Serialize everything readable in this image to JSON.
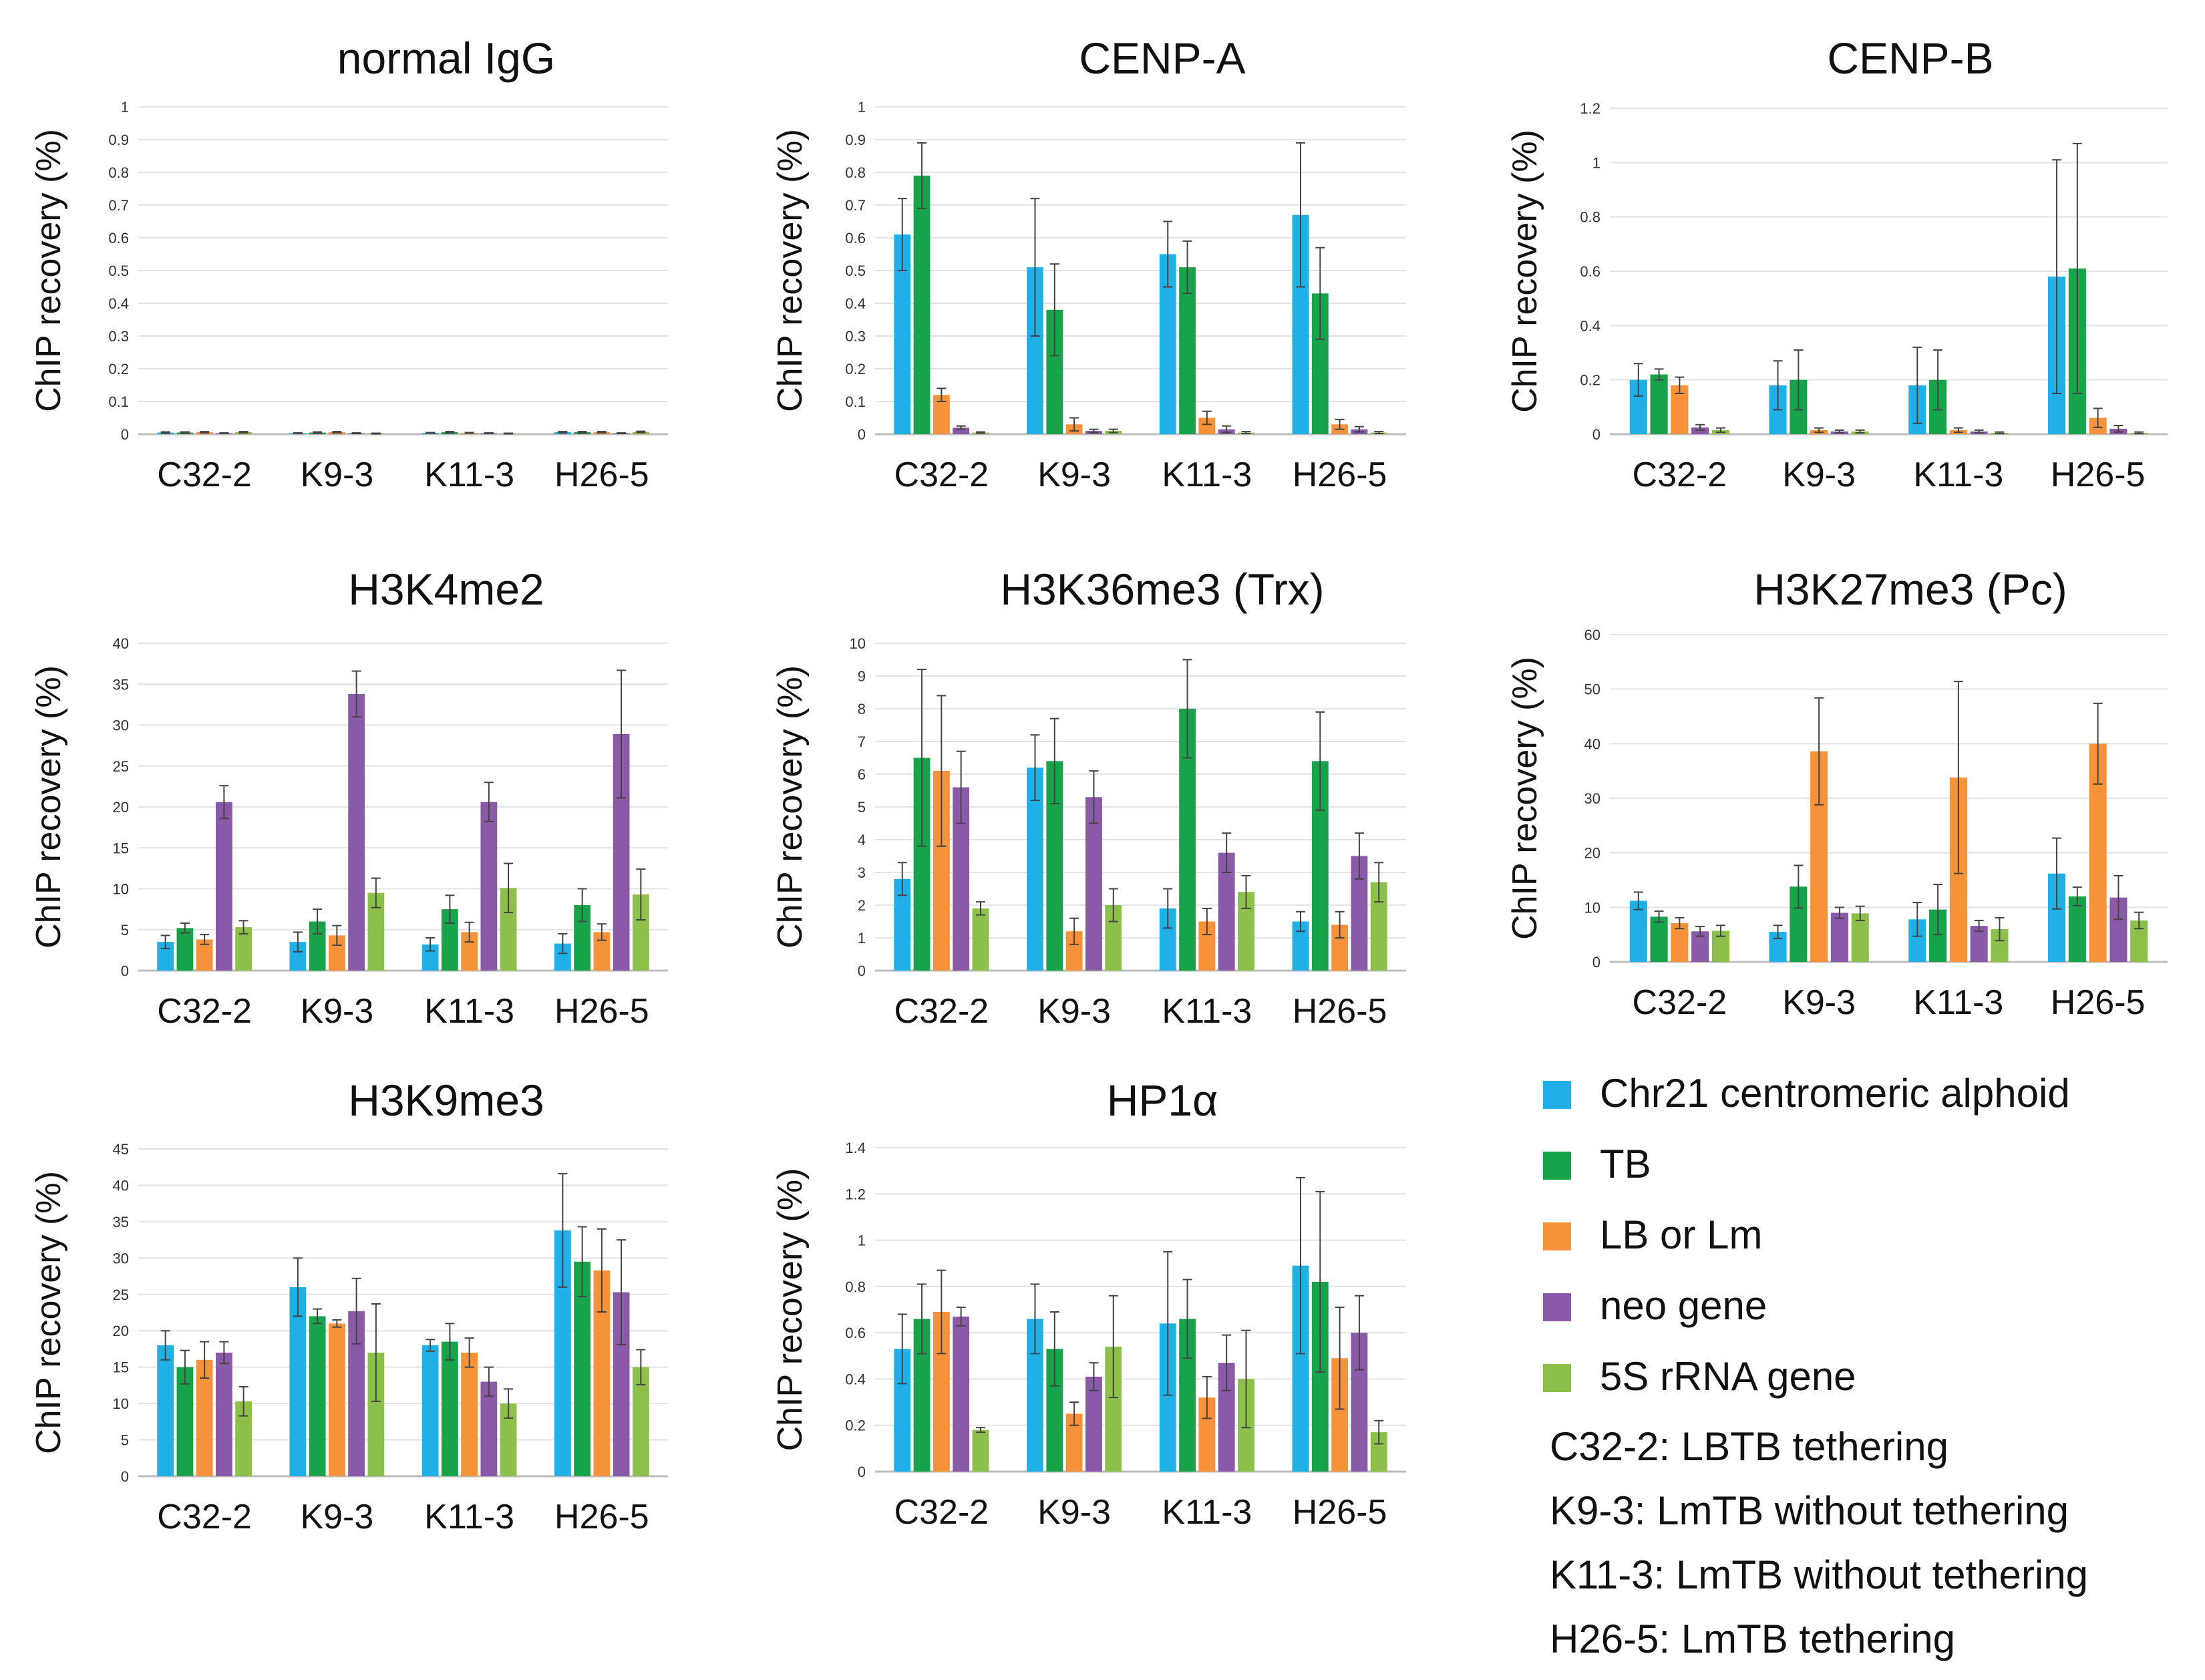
{
  "chart_data": [
    {
      "type": "bar",
      "title": "normal IgG",
      "ylabel": "ChIP recovery (%)",
      "xlabel": "",
      "ylim": [
        0,
        1
      ],
      "yticks": [
        "0",
        "0.1",
        "0.2",
        "0.3",
        "0.4",
        "0.5",
        "0.6",
        "0.7",
        "0.8",
        "0.9",
        "1"
      ],
      "categories": [
        "C32-2",
        "K9-3",
        "K11-3",
        "H26-5"
      ],
      "series": [
        {
          "name": "Chr21 centromeric alphoid",
          "values": [
            0.005,
            0.003,
            0.004,
            0.006
          ],
          "errors": [
            0.002,
            0.001,
            0.001,
            0.002
          ]
        },
        {
          "name": "TB",
          "values": [
            0.005,
            0.005,
            0.006,
            0.006
          ],
          "errors": [
            0.002,
            0.002,
            0.002,
            0.002
          ]
        },
        {
          "name": "LB or Lm",
          "values": [
            0.006,
            0.006,
            0.004,
            0.006
          ],
          "errors": [
            0.002,
            0.002,
            0.001,
            0.002
          ]
        },
        {
          "name": "neo gene",
          "values": [
            0.003,
            0.003,
            0.003,
            0.003
          ],
          "errors": [
            0.001,
            0.001,
            0.001,
            0.001
          ]
        },
        {
          "name": "5S rRNA gene",
          "values": [
            0.006,
            0.002,
            0.002,
            0.007
          ],
          "errors": [
            0.002,
            0.001,
            0.001,
            0.002
          ]
        }
      ]
    },
    {
      "type": "bar",
      "title": "CENP-A",
      "ylabel": "ChIP recovery (%)",
      "xlabel": "",
      "ylim": [
        0,
        1
      ],
      "yticks": [
        "0",
        "0.1",
        "0.2",
        "0.3",
        "0.4",
        "0.5",
        "0.6",
        "0.7",
        "0.8",
        "0.9",
        "1"
      ],
      "categories": [
        "C32-2",
        "K9-3",
        "K11-3",
        "H26-5"
      ],
      "series": [
        {
          "name": "Chr21 centromeric alphoid",
          "values": [
            0.61,
            0.51,
            0.55,
            0.67
          ],
          "errors": [
            0.11,
            0.21,
            0.1,
            0.22
          ]
        },
        {
          "name": "TB",
          "values": [
            0.79,
            0.38,
            0.51,
            0.43
          ],
          "errors": [
            0.1,
            0.14,
            0.08,
            0.14
          ]
        },
        {
          "name": "LB or Lm",
          "values": [
            0.12,
            0.03,
            0.05,
            0.03
          ],
          "errors": [
            0.02,
            0.02,
            0.02,
            0.015
          ]
        },
        {
          "name": "neo gene",
          "values": [
            0.02,
            0.01,
            0.015,
            0.015
          ],
          "errors": [
            0.005,
            0.005,
            0.01,
            0.008
          ]
        },
        {
          "name": "5S rRNA gene",
          "values": [
            0.005,
            0.01,
            0.005,
            0.005
          ],
          "errors": [
            0.002,
            0.005,
            0.003,
            0.003
          ]
        }
      ]
    },
    {
      "type": "bar",
      "title": "CENP-B",
      "ylabel": "ChIP recovery (%)",
      "xlabel": "",
      "ylim": [
        0,
        1.2
      ],
      "yticks": [
        "0",
        "0.2",
        "0.4",
        "0.6",
        "0.8",
        "1",
        "1.2"
      ],
      "categories": [
        "C32-2",
        "K9-3",
        "K11-3",
        "H26-5"
      ],
      "series": [
        {
          "name": "Chr21 centromeric alphoid",
          "values": [
            0.2,
            0.18,
            0.18,
            0.58
          ],
          "errors": [
            0.06,
            0.09,
            0.14,
            0.43
          ]
        },
        {
          "name": "TB",
          "values": [
            0.22,
            0.2,
            0.2,
            0.61
          ],
          "errors": [
            0.02,
            0.11,
            0.11,
            0.46
          ]
        },
        {
          "name": "LB or Lm",
          "values": [
            0.18,
            0.015,
            0.015,
            0.06
          ],
          "errors": [
            0.03,
            0.008,
            0.008,
            0.035
          ]
        },
        {
          "name": "neo gene",
          "values": [
            0.025,
            0.01,
            0.01,
            0.02
          ],
          "errors": [
            0.01,
            0.005,
            0.005,
            0.012
          ]
        },
        {
          "name": "5S rRNA gene",
          "values": [
            0.015,
            0.01,
            0.005,
            0.005
          ],
          "errors": [
            0.008,
            0.005,
            0.003,
            0.003
          ]
        }
      ]
    },
    {
      "type": "bar",
      "title": "H3K4me2",
      "ylabel": "ChIP recovery (%)",
      "xlabel": "",
      "ylim": [
        0,
        40
      ],
      "yticks": [
        "0",
        "5",
        "10",
        "15",
        "20",
        "25",
        "30",
        "35",
        "40"
      ],
      "categories": [
        "C32-2",
        "K9-3",
        "K11-3",
        "H26-5"
      ],
      "series": [
        {
          "name": "Chr21 centromeric alphoid",
          "values": [
            3.5,
            3.5,
            3.2,
            3.3
          ],
          "errors": [
            0.8,
            1.2,
            0.8,
            1.2
          ]
        },
        {
          "name": "TB",
          "values": [
            5.2,
            6.0,
            7.5,
            8.0
          ],
          "errors": [
            0.6,
            1.5,
            1.7,
            2.0
          ]
        },
        {
          "name": "LB or Lm",
          "values": [
            3.8,
            4.3,
            4.7,
            4.7
          ],
          "errors": [
            0.6,
            1.2,
            1.2,
            1.0
          ]
        },
        {
          "name": "neo gene",
          "values": [
            20.6,
            33.8,
            20.6,
            28.9
          ],
          "errors": [
            2.0,
            2.8,
            2.4,
            7.8
          ]
        },
        {
          "name": "5S rRNA gene",
          "values": [
            5.3,
            9.5,
            10.1,
            9.3
          ],
          "errors": [
            0.8,
            1.8,
            3.0,
            3.1
          ]
        }
      ]
    },
    {
      "type": "bar",
      "title": "H3K36me3 (Trx)",
      "ylabel": "ChIP recovery (%)",
      "xlabel": "",
      "ylim": [
        0,
        10
      ],
      "yticks": [
        "0",
        "1",
        "2",
        "3",
        "4",
        "5",
        "6",
        "7",
        "8",
        "9",
        "10"
      ],
      "categories": [
        "C32-2",
        "K9-3",
        "K11-3",
        "H26-5"
      ],
      "series": [
        {
          "name": "Chr21 centromeric alphoid",
          "values": [
            2.8,
            6.2,
            1.9,
            1.5
          ],
          "errors": [
            0.5,
            1.0,
            0.6,
            0.3
          ]
        },
        {
          "name": "TB",
          "values": [
            6.5,
            6.4,
            8.0,
            6.4
          ],
          "errors": [
            2.7,
            1.3,
            1.5,
            1.5
          ]
        },
        {
          "name": "LB or Lm",
          "values": [
            6.1,
            1.2,
            1.5,
            1.4
          ],
          "errors": [
            2.3,
            0.4,
            0.4,
            0.4
          ]
        },
        {
          "name": "neo gene",
          "values": [
            5.6,
            5.3,
            3.6,
            3.5
          ],
          "errors": [
            1.1,
            0.8,
            0.6,
            0.7
          ]
        },
        {
          "name": "5S rRNA gene",
          "values": [
            1.9,
            2.0,
            2.4,
            2.7
          ],
          "errors": [
            0.2,
            0.5,
            0.5,
            0.6
          ]
        }
      ]
    },
    {
      "type": "bar",
      "title": "H3K27me3 (Pc)",
      "ylabel": "ChIP recovery (%)",
      "xlabel": "",
      "ylim": [
        0,
        60
      ],
      "yticks": [
        "0",
        "10",
        "20",
        "30",
        "40",
        "50",
        "60"
      ],
      "categories": [
        "C32-2",
        "K9-3",
        "K11-3",
        "H26-5"
      ],
      "series": [
        {
          "name": "Chr21 centromeric alphoid",
          "values": [
            11.2,
            5.5,
            7.8,
            16.2
          ],
          "errors": [
            1.6,
            1.2,
            3.1,
            6.5
          ]
        },
        {
          "name": "TB",
          "values": [
            8.3,
            13.8,
            9.6,
            12.0
          ],
          "errors": [
            1.0,
            3.9,
            4.6,
            1.7
          ]
        },
        {
          "name": "LB or Lm",
          "values": [
            7.1,
            38.6,
            33.8,
            40.0
          ],
          "errors": [
            1.0,
            9.8,
            17.6,
            7.4
          ]
        },
        {
          "name": "neo gene",
          "values": [
            5.6,
            9.0,
            6.6,
            11.8
          ],
          "errors": [
            0.9,
            1.0,
            1.0,
            4.0
          ]
        },
        {
          "name": "5S rRNA gene",
          "values": [
            5.7,
            8.9,
            6.0,
            7.6
          ],
          "errors": [
            1.0,
            1.3,
            2.1,
            1.5
          ]
        }
      ]
    },
    {
      "type": "bar",
      "title": "H3K9me3",
      "ylabel": "ChIP recovery (%)",
      "xlabel": "",
      "ylim": [
        0,
        45
      ],
      "yticks": [
        "0",
        "5",
        "10",
        "15",
        "20",
        "25",
        "30",
        "35",
        "40",
        "45"
      ],
      "categories": [
        "C32-2",
        "K9-3",
        "K11-3",
        "H26-5"
      ],
      "series": [
        {
          "name": "Chr21 centromeric alphoid",
          "values": [
            18.0,
            26.0,
            18.0,
            33.8
          ],
          "errors": [
            2.0,
            4.0,
            0.8,
            7.8
          ]
        },
        {
          "name": "TB",
          "values": [
            15.0,
            22.0,
            18.5,
            29.5
          ],
          "errors": [
            2.3,
            1.0,
            2.5,
            4.8
          ]
        },
        {
          "name": "LB or Lm",
          "values": [
            16.0,
            21.0,
            17.0,
            28.3
          ],
          "errors": [
            2.5,
            0.5,
            2.0,
            5.7
          ]
        },
        {
          "name": "neo gene",
          "values": [
            17.0,
            22.7,
            13.0,
            25.3
          ],
          "errors": [
            1.5,
            4.5,
            2.0,
            7.2
          ]
        },
        {
          "name": "5S rRNA gene",
          "values": [
            10.3,
            17.0,
            10.0,
            15.0
          ],
          "errors": [
            2.0,
            6.7,
            2.0,
            2.4
          ]
        }
      ]
    },
    {
      "type": "bar",
      "title": "HP1α",
      "ylabel": "ChIP recovery (%)",
      "xlabel": "",
      "ylim": [
        0,
        1.4
      ],
      "yticks": [
        "0",
        "0.2",
        "0.4",
        "0.6",
        "0.8",
        "1",
        "1.2",
        "1.4"
      ],
      "categories": [
        "C32-2",
        "K9-3",
        "K11-3",
        "H26-5"
      ],
      "series": [
        {
          "name": "Chr21 centromeric alphoid",
          "values": [
            0.53,
            0.66,
            0.64,
            0.89
          ],
          "errors": [
            0.15,
            0.15,
            0.31,
            0.38
          ]
        },
        {
          "name": "TB",
          "values": [
            0.66,
            0.53,
            0.66,
            0.82
          ],
          "errors": [
            0.15,
            0.16,
            0.17,
            0.39
          ]
        },
        {
          "name": "LB or Lm",
          "values": [
            0.69,
            0.25,
            0.32,
            0.49
          ],
          "errors": [
            0.18,
            0.05,
            0.09,
            0.22
          ]
        },
        {
          "name": "neo gene",
          "values": [
            0.67,
            0.41,
            0.47,
            0.6
          ],
          "errors": [
            0.04,
            0.06,
            0.12,
            0.16
          ]
        },
        {
          "name": "5S rRNA gene",
          "values": [
            0.18,
            0.54,
            0.4,
            0.17
          ],
          "errors": [
            0.01,
            0.22,
            0.21,
            0.05
          ]
        }
      ]
    }
  ],
  "legend": {
    "items": [
      {
        "label": "Chr21 centromeric alphoid",
        "color": "#1fb0e8"
      },
      {
        "label": "TB",
        "color": "#17a34a"
      },
      {
        "label": "LB or Lm",
        "color": "#f6923a"
      },
      {
        "label": "neo gene",
        "color": "#8a5aa8"
      },
      {
        "label": "5S rRNA gene",
        "color": "#8cc04a"
      }
    ]
  },
  "notes": [
    "C32-2: LBTB tethering",
    "K9-3: LmTB without tethering",
    "K11-3: LmTB without tethering",
    "H26-5: LmTB tethering"
  ]
}
